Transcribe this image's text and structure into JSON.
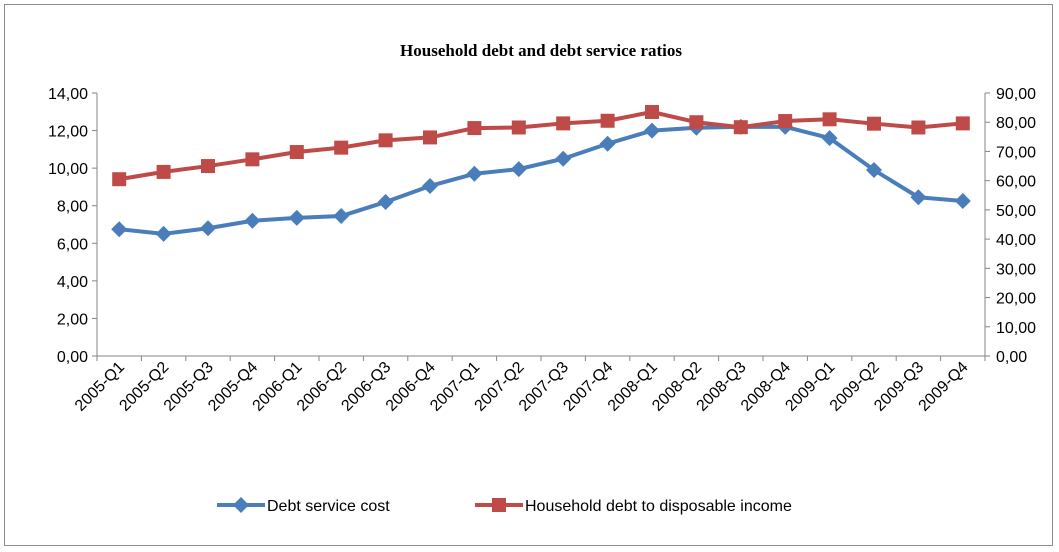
{
  "chart_data": {
    "type": "line",
    "title": "Household debt and debt service ratios",
    "xlabel": "",
    "ylabel": "",
    "categories": [
      "2005-Q1",
      "2005-Q2",
      "2005-Q3",
      "2005-Q4",
      "2006-Q1",
      "2006-Q2",
      "2006-Q3",
      "2006-Q4",
      "2007-Q1",
      "2007-Q2",
      "2007-Q3",
      "2007-Q4",
      "2008-Q1",
      "2008-Q2",
      "2008-Q3",
      "2008-Q4",
      "2009-Q1",
      "2009-Q2",
      "2009-Q3",
      "2009-Q4"
    ],
    "y_left": {
      "ylim": [
        0,
        14
      ],
      "ticks": [
        "0,00",
        "2,00",
        "4,00",
        "6,00",
        "8,00",
        "10,00",
        "12,00",
        "14,00"
      ]
    },
    "y_right": {
      "ylim": [
        0,
        90
      ],
      "ticks": [
        "0,00",
        "10,00",
        "20,00",
        "30,00",
        "40,00",
        "50,00",
        "60,00",
        "70,00",
        "80,00",
        "90,00"
      ]
    },
    "grid": false,
    "legend_position": "bottom",
    "series": [
      {
        "name": "Debt service cost",
        "axis": "left",
        "color": "#4a7ebb",
        "marker": "diamond",
        "values": [
          6.75,
          6.5,
          6.8,
          7.2,
          7.35,
          7.45,
          8.2,
          9.05,
          9.7,
          9.95,
          10.5,
          11.3,
          12.0,
          12.15,
          12.2,
          12.2,
          11.6,
          9.9,
          8.45,
          8.25
        ]
      },
      {
        "name": "Household debt to disposable income",
        "axis": "right",
        "color": "#be4b48",
        "marker": "square",
        "values": [
          60.5,
          63.0,
          65.0,
          67.3,
          69.8,
          71.3,
          73.8,
          74.8,
          78.0,
          78.2,
          79.6,
          80.5,
          83.5,
          80.0,
          78.3,
          80.4,
          81.0,
          79.5,
          78.2,
          79.6
        ]
      }
    ]
  }
}
